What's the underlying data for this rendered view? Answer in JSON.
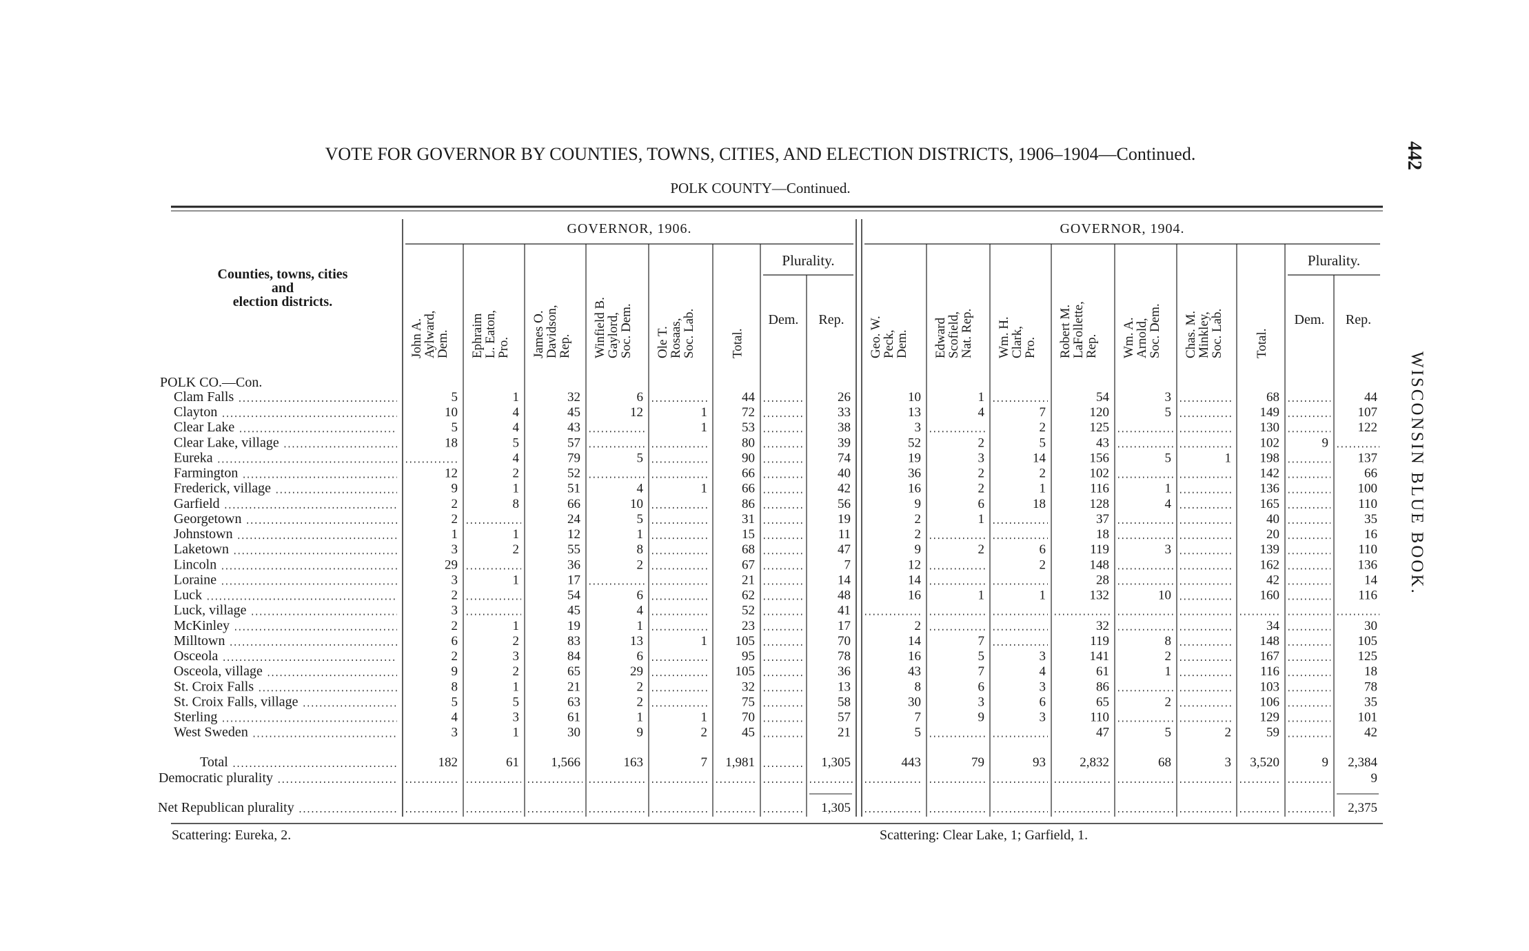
{
  "header": {
    "title": "VOTE FOR GOVERNOR BY COUNTIES, TOWNS, CITIES, AND ELECTION DISTRICTS, 1906–1904—Continued.",
    "subtitle": "POLK COUNTY—Continued.",
    "page_number": "442",
    "running_head": "WISCONSIN BLUE BOOK."
  },
  "table": {
    "stub_header": [
      "Counties, towns, cities",
      "and",
      "election districts."
    ],
    "groups": [
      {
        "label": "GOVERNOR, 1906.",
        "candidates": [
          [
            "John A.",
            "Aylward,",
            "Dem."
          ],
          [
            "Ephraim",
            "L. Eaton,",
            "Pro."
          ],
          [
            "James O.",
            "Davidson,",
            "Rep."
          ],
          [
            "Winfield B.",
            "Gaylord,",
            "Soc. Dem."
          ],
          [
            "Ole T.",
            "Rosaas,",
            "Soc. Lab."
          ]
        ],
        "total": "Total.",
        "plurality": {
          "label": "Plurality.",
          "columns": [
            "Dem.",
            "Rep."
          ]
        }
      },
      {
        "label": "GOVERNOR, 1904.",
        "candidates": [
          [
            "Geo. W.",
            "Peck,",
            "Dem."
          ],
          [
            "Edward",
            "Scofield,",
            "Nat. Rep."
          ],
          [
            "Wm. H.",
            "Clark,",
            "Pro."
          ],
          [
            "Robert M.",
            "LaFollette,",
            "Rep."
          ],
          [
            "Wm. A.",
            "Arnold,",
            "Soc. Dem."
          ],
          [
            "Chas. M.",
            "Minkley,",
            "Soc. Lab."
          ]
        ],
        "total": "Total.",
        "plurality": {
          "label": "Plurality.",
          "columns": [
            "Dem.",
            "Rep."
          ]
        }
      }
    ],
    "section_label": "POLK CO.—Con.",
    "rows": [
      {
        "label": "Clam Falls",
        "cells": [
          5,
          1,
          32,
          6,
          null,
          44,
          null,
          26,
          10,
          1,
          null,
          54,
          3,
          null,
          68,
          null,
          44
        ]
      },
      {
        "label": "Clayton",
        "cells": [
          10,
          4,
          45,
          12,
          1,
          72,
          null,
          33,
          13,
          4,
          7,
          120,
          5,
          null,
          149,
          null,
          107
        ]
      },
      {
        "label": "Clear Lake",
        "cells": [
          5,
          4,
          43,
          null,
          1,
          53,
          null,
          38,
          3,
          null,
          2,
          125,
          null,
          null,
          130,
          null,
          122
        ]
      },
      {
        "label": "Clear Lake, village",
        "cells": [
          18,
          5,
          57,
          null,
          null,
          80,
          null,
          39,
          52,
          2,
          5,
          43,
          null,
          null,
          102,
          9,
          null
        ]
      },
      {
        "label": "Eureka",
        "cells": [
          null,
          4,
          79,
          5,
          null,
          90,
          null,
          74,
          19,
          3,
          14,
          156,
          5,
          1,
          198,
          null,
          137
        ]
      },
      {
        "label": "Farmington",
        "cells": [
          12,
          2,
          52,
          null,
          null,
          66,
          null,
          40,
          36,
          2,
          2,
          102,
          null,
          null,
          142,
          null,
          66
        ]
      },
      {
        "label": "Frederick, village",
        "cells": [
          9,
          1,
          51,
          4,
          1,
          66,
          null,
          42,
          16,
          2,
          1,
          116,
          1,
          null,
          136,
          null,
          100
        ]
      },
      {
        "label": "Garfield",
        "cells": [
          2,
          8,
          66,
          10,
          null,
          86,
          null,
          56,
          9,
          6,
          18,
          128,
          4,
          null,
          165,
          null,
          110
        ]
      },
      {
        "label": "Georgetown",
        "cells": [
          2,
          null,
          24,
          5,
          null,
          31,
          null,
          19,
          2,
          1,
          null,
          37,
          null,
          null,
          40,
          null,
          35
        ]
      },
      {
        "label": "Johnstown",
        "cells": [
          1,
          1,
          12,
          1,
          null,
          15,
          null,
          11,
          2,
          null,
          null,
          18,
          null,
          null,
          20,
          null,
          16
        ]
      },
      {
        "label": "Laketown",
        "cells": [
          3,
          2,
          55,
          8,
          null,
          68,
          null,
          47,
          9,
          2,
          6,
          119,
          3,
          null,
          139,
          null,
          110
        ]
      },
      {
        "label": "Lincoln",
        "cells": [
          29,
          null,
          36,
          2,
          null,
          67,
          null,
          7,
          12,
          null,
          2,
          148,
          null,
          null,
          162,
          null,
          136
        ]
      },
      {
        "label": "Loraine",
        "cells": [
          3,
          1,
          17,
          null,
          null,
          21,
          null,
          14,
          14,
          null,
          null,
          28,
          null,
          null,
          42,
          null,
          14
        ]
      },
      {
        "label": "Luck",
        "cells": [
          2,
          null,
          54,
          6,
          null,
          62,
          null,
          48,
          16,
          1,
          1,
          132,
          10,
          null,
          160,
          null,
          116
        ]
      },
      {
        "label": "Luck, village",
        "cells": [
          3,
          null,
          45,
          4,
          null,
          52,
          null,
          41,
          null,
          null,
          null,
          null,
          null,
          null,
          null,
          null,
          null
        ]
      },
      {
        "label": "McKinley",
        "cells": [
          2,
          1,
          19,
          1,
          null,
          23,
          null,
          17,
          2,
          null,
          null,
          32,
          null,
          null,
          34,
          null,
          30
        ]
      },
      {
        "label": "Milltown",
        "cells": [
          6,
          2,
          83,
          13,
          1,
          105,
          null,
          70,
          14,
          7,
          null,
          119,
          8,
          null,
          148,
          null,
          105
        ]
      },
      {
        "label": "Osceola",
        "cells": [
          2,
          3,
          84,
          6,
          null,
          95,
          null,
          78,
          16,
          5,
          3,
          141,
          2,
          null,
          167,
          null,
          125
        ]
      },
      {
        "label": "Osceola, village",
        "cells": [
          9,
          2,
          65,
          29,
          null,
          105,
          null,
          36,
          43,
          7,
          4,
          61,
          1,
          null,
          116,
          null,
          18
        ]
      },
      {
        "label": "St. Croix Falls",
        "cells": [
          8,
          1,
          21,
          2,
          null,
          32,
          null,
          13,
          8,
          6,
          3,
          86,
          null,
          null,
          103,
          null,
          78
        ]
      },
      {
        "label": "St. Croix Falls, village",
        "cells": [
          5,
          5,
          63,
          2,
          null,
          75,
          null,
          58,
          30,
          3,
          6,
          65,
          2,
          null,
          106,
          null,
          35
        ]
      },
      {
        "label": "Sterling",
        "cells": [
          4,
          3,
          61,
          1,
          1,
          70,
          null,
          57,
          7,
          9,
          3,
          110,
          null,
          null,
          129,
          null,
          101
        ]
      },
      {
        "label": "West Sweden",
        "cells": [
          3,
          1,
          30,
          9,
          2,
          45,
          null,
          21,
          5,
          null,
          null,
          47,
          5,
          2,
          59,
          null,
          42
        ]
      }
    ],
    "summary_rows": [
      {
        "label": "Total",
        "cells": [
          182,
          61,
          "1,566",
          163,
          7,
          "1,981",
          null,
          "1,305",
          443,
          79,
          93,
          "2,832",
          68,
          3,
          "3,520",
          9,
          "2,384"
        ]
      },
      {
        "label": "Democratic plurality",
        "cells": [
          null,
          null,
          null,
          null,
          null,
          null,
          null,
          null,
          null,
          null,
          null,
          null,
          null,
          null,
          null,
          null,
          9
        ]
      },
      {
        "label": "Net Republican plurality",
        "cells": [
          null,
          null,
          null,
          null,
          null,
          null,
          null,
          "1,305",
          null,
          null,
          null,
          null,
          null,
          null,
          null,
          null,
          "2,375"
        ]
      }
    ]
  },
  "footnotes": [
    "Scattering: Eureka, 2.",
    "Scattering: Clear Lake, 1; Garfield, 1."
  ]
}
